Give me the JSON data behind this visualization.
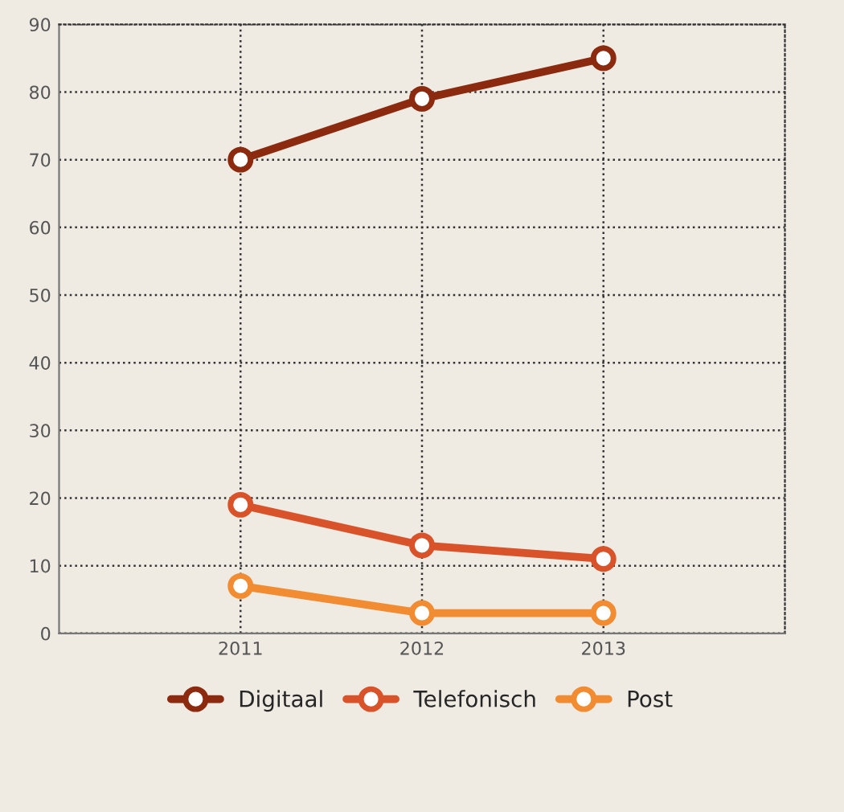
{
  "chart_data": {
    "type": "line",
    "categories": [
      "2011",
      "2012",
      "2013"
    ],
    "series": [
      {
        "name": "Digitaal",
        "color": "#8b2a0e",
        "values": [
          70,
          79,
          85
        ]
      },
      {
        "name": "Telefonisch",
        "color": "#d9532a",
        "values": [
          19,
          13,
          11
        ]
      },
      {
        "name": "Post",
        "color": "#f28c32",
        "values": [
          7,
          3,
          3
        ]
      }
    ],
    "ylim": [
      0,
      90
    ],
    "yticks": [
      0,
      10,
      20,
      30,
      40,
      50,
      60,
      70,
      80,
      90
    ],
    "grid": true,
    "legend": "bottom",
    "marker": "circle",
    "line_style": "solid"
  }
}
